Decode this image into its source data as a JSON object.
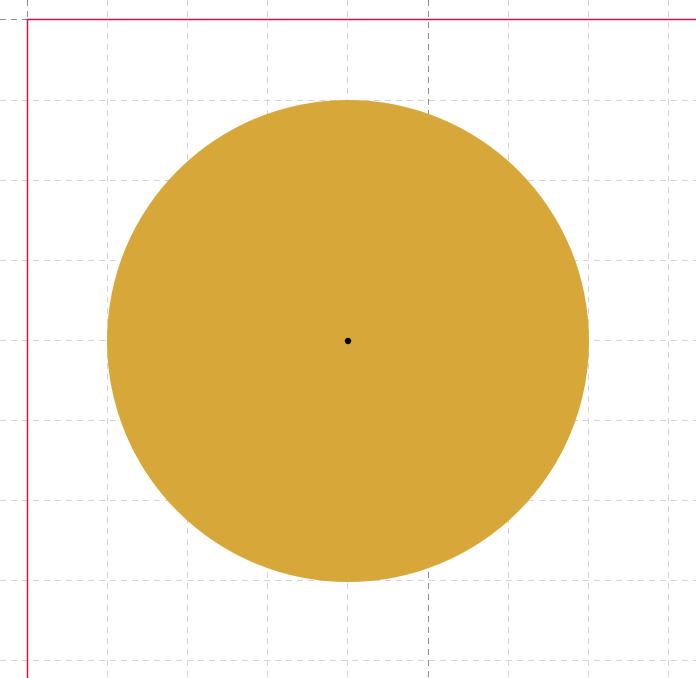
{
  "colors": {
    "background": "#ffffff",
    "grid_minor": "#d4d4d4",
    "grid_major": "#8c8c8c",
    "axis": "#e0103c",
    "circle_fill": "#d8a73a",
    "center_point": "#000000"
  },
  "grid": {
    "style": "dashed",
    "visible": true
  },
  "shapes": [
    {
      "kind": "circle",
      "fill_color_name": "mustard",
      "center_marked": true
    }
  ]
}
